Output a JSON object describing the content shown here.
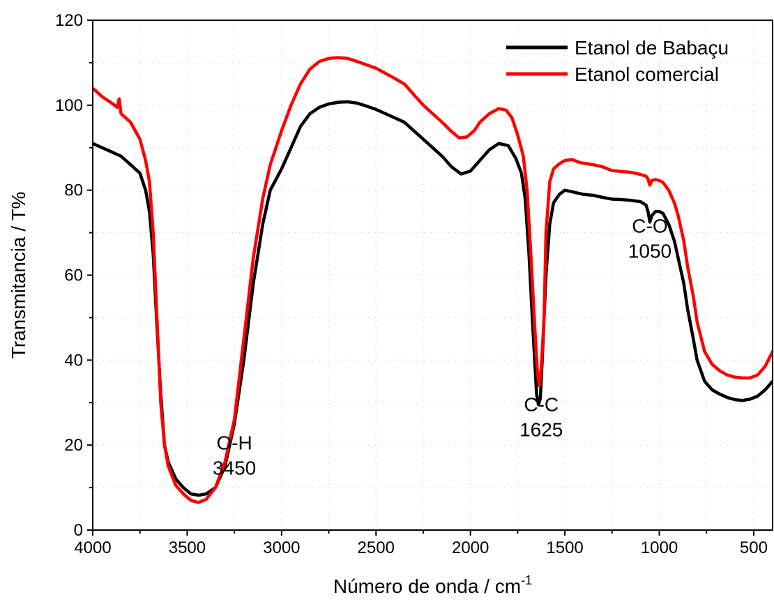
{
  "chart_data": {
    "type": "line",
    "xlabel": "Número de onda / cm",
    "xlabel_superscript": "-1",
    "ylabel": "Transmitancia / T%",
    "xlim": [
      4000,
      400
    ],
    "ylim": [
      0,
      120
    ],
    "x_reversed": true,
    "x_ticks": [
      4000,
      3500,
      3000,
      2500,
      2000,
      1500,
      1000,
      500
    ],
    "y_ticks": [
      0,
      20,
      40,
      60,
      80,
      100,
      120
    ],
    "grid": true,
    "legend_position": "top-right",
    "series": [
      {
        "name": "Etanol de Babaçu",
        "color": "#000000",
        "points": [
          [
            4000,
            91
          ],
          [
            3950,
            90
          ],
          [
            3900,
            89
          ],
          [
            3850,
            88
          ],
          [
            3800,
            86
          ],
          [
            3750,
            84
          ],
          [
            3720,
            80
          ],
          [
            3700,
            75
          ],
          [
            3680,
            65
          ],
          [
            3660,
            48
          ],
          [
            3640,
            32
          ],
          [
            3620,
            20
          ],
          [
            3600,
            16
          ],
          [
            3560,
            12
          ],
          [
            3520,
            10
          ],
          [
            3480,
            8.5
          ],
          [
            3440,
            8.2
          ],
          [
            3400,
            8.5
          ],
          [
            3350,
            10
          ],
          [
            3300,
            15
          ],
          [
            3250,
            25
          ],
          [
            3200,
            40
          ],
          [
            3150,
            58
          ],
          [
            3100,
            72
          ],
          [
            3060,
            80
          ],
          [
            3000,
            85
          ],
          [
            2950,
            90
          ],
          [
            2900,
            95
          ],
          [
            2850,
            98
          ],
          [
            2800,
            99.5
          ],
          [
            2750,
            100.3
          ],
          [
            2700,
            100.7
          ],
          [
            2650,
            100.8
          ],
          [
            2600,
            100.5
          ],
          [
            2550,
            99.8
          ],
          [
            2500,
            99
          ],
          [
            2450,
            98
          ],
          [
            2400,
            97
          ],
          [
            2350,
            96
          ],
          [
            2300,
            94
          ],
          [
            2250,
            92
          ],
          [
            2200,
            90
          ],
          [
            2150,
            88
          ],
          [
            2100,
            85.5
          ],
          [
            2050,
            83.8
          ],
          [
            2000,
            84.5
          ],
          [
            1950,
            87
          ],
          [
            1900,
            89.5
          ],
          [
            1850,
            91
          ],
          [
            1800,
            90.5
          ],
          [
            1760,
            87.5
          ],
          [
            1730,
            84
          ],
          [
            1710,
            78
          ],
          [
            1690,
            65
          ],
          [
            1670,
            48
          ],
          [
            1650,
            32
          ],
          [
            1640,
            29.5
          ],
          [
            1630,
            31
          ],
          [
            1620,
            40
          ],
          [
            1600,
            60
          ],
          [
            1580,
            72
          ],
          [
            1560,
            77
          ],
          [
            1530,
            79
          ],
          [
            1500,
            80
          ],
          [
            1450,
            79.5
          ],
          [
            1400,
            79
          ],
          [
            1350,
            78.8
          ],
          [
            1300,
            78.3
          ],
          [
            1250,
            77.9
          ],
          [
            1200,
            77.8
          ],
          [
            1150,
            77.6
          ],
          [
            1100,
            77.3
          ],
          [
            1070,
            76.5
          ],
          [
            1060,
            75
          ],
          [
            1050,
            72.5
          ],
          [
            1040,
            74
          ],
          [
            1020,
            75
          ],
          [
            1000,
            75
          ],
          [
            980,
            74.5
          ],
          [
            950,
            72
          ],
          [
            920,
            68
          ],
          [
            900,
            64
          ],
          [
            870,
            58
          ],
          [
            850,
            52
          ],
          [
            820,
            45
          ],
          [
            800,
            40
          ],
          [
            760,
            35
          ],
          [
            720,
            33
          ],
          [
            680,
            32
          ],
          [
            640,
            31.2
          ],
          [
            600,
            30.7
          ],
          [
            560,
            30.5
          ],
          [
            520,
            30.8
          ],
          [
            480,
            31.5
          ],
          [
            440,
            33
          ],
          [
            400,
            35
          ]
        ]
      },
      {
        "name": "Etanol comercial",
        "color": "#ff0000",
        "points": [
          [
            4000,
            104
          ],
          [
            3950,
            102
          ],
          [
            3900,
            100.5
          ],
          [
            3870,
            99.5
          ],
          [
            3860,
            101.5
          ],
          [
            3850,
            98
          ],
          [
            3800,
            96
          ],
          [
            3750,
            92
          ],
          [
            3720,
            87
          ],
          [
            3700,
            82
          ],
          [
            3680,
            70
          ],
          [
            3660,
            50
          ],
          [
            3640,
            30
          ],
          [
            3620,
            20
          ],
          [
            3600,
            15
          ],
          [
            3560,
            10.5
          ],
          [
            3520,
            8.5
          ],
          [
            3480,
            7
          ],
          [
            3440,
            6.5
          ],
          [
            3400,
            7.2
          ],
          [
            3350,
            10
          ],
          [
            3300,
            16
          ],
          [
            3250,
            26
          ],
          [
            3200,
            45
          ],
          [
            3150,
            64
          ],
          [
            3100,
            78
          ],
          [
            3060,
            86
          ],
          [
            3000,
            94
          ],
          [
            2950,
            100
          ],
          [
            2900,
            105
          ],
          [
            2850,
            108.5
          ],
          [
            2800,
            110.3
          ],
          [
            2750,
            111
          ],
          [
            2700,
            111.2
          ],
          [
            2650,
            111
          ],
          [
            2600,
            110.3
          ],
          [
            2550,
            109.5
          ],
          [
            2500,
            108.7
          ],
          [
            2450,
            107.5
          ],
          [
            2400,
            106.3
          ],
          [
            2350,
            105
          ],
          [
            2300,
            102.5
          ],
          [
            2250,
            100
          ],
          [
            2200,
            98
          ],
          [
            2150,
            96
          ],
          [
            2100,
            93.8
          ],
          [
            2060,
            92.3
          ],
          [
            2020,
            92.5
          ],
          [
            1980,
            94
          ],
          [
            1950,
            96
          ],
          [
            1900,
            98
          ],
          [
            1850,
            99.2
          ],
          [
            1810,
            98.8
          ],
          [
            1780,
            97
          ],
          [
            1750,
            93
          ],
          [
            1720,
            88
          ],
          [
            1700,
            80
          ],
          [
            1680,
            65
          ],
          [
            1660,
            48
          ],
          [
            1645,
            37
          ],
          [
            1635,
            34
          ],
          [
            1625,
            38
          ],
          [
            1610,
            50
          ],
          [
            1600,
            70
          ],
          [
            1580,
            82
          ],
          [
            1560,
            85
          ],
          [
            1530,
            86.2
          ],
          [
            1500,
            87
          ],
          [
            1460,
            87.2
          ],
          [
            1420,
            86.5
          ],
          [
            1380,
            86.2
          ],
          [
            1350,
            86
          ],
          [
            1300,
            85.5
          ],
          [
            1250,
            84.6
          ],
          [
            1200,
            84.4
          ],
          [
            1150,
            84.2
          ],
          [
            1100,
            83.7
          ],
          [
            1070,
            83.3
          ],
          [
            1060,
            82.6
          ],
          [
            1050,
            81.2
          ],
          [
            1040,
            82.3
          ],
          [
            1020,
            82.5
          ],
          [
            1000,
            82.3
          ],
          [
            980,
            81.8
          ],
          [
            950,
            80
          ],
          [
            920,
            77
          ],
          [
            900,
            74
          ],
          [
            870,
            68
          ],
          [
            850,
            62
          ],
          [
            820,
            55
          ],
          [
            800,
            49
          ],
          [
            760,
            42
          ],
          [
            720,
            39
          ],
          [
            680,
            37.5
          ],
          [
            640,
            36.5
          ],
          [
            600,
            36
          ],
          [
            560,
            35.8
          ],
          [
            520,
            35.8
          ],
          [
            480,
            36.5
          ],
          [
            440,
            38.5
          ],
          [
            400,
            42
          ]
        ]
      }
    ],
    "annotations": [
      {
        "lines": [
          "O-H",
          "3450"
        ],
        "x": 3250,
        "y": 19
      },
      {
        "lines": [
          "C-C",
          "1625"
        ],
        "x": 1625,
        "y": 28
      },
      {
        "lines": [
          "C-O",
          "1050"
        ],
        "x": 1050,
        "y": 70
      }
    ]
  }
}
